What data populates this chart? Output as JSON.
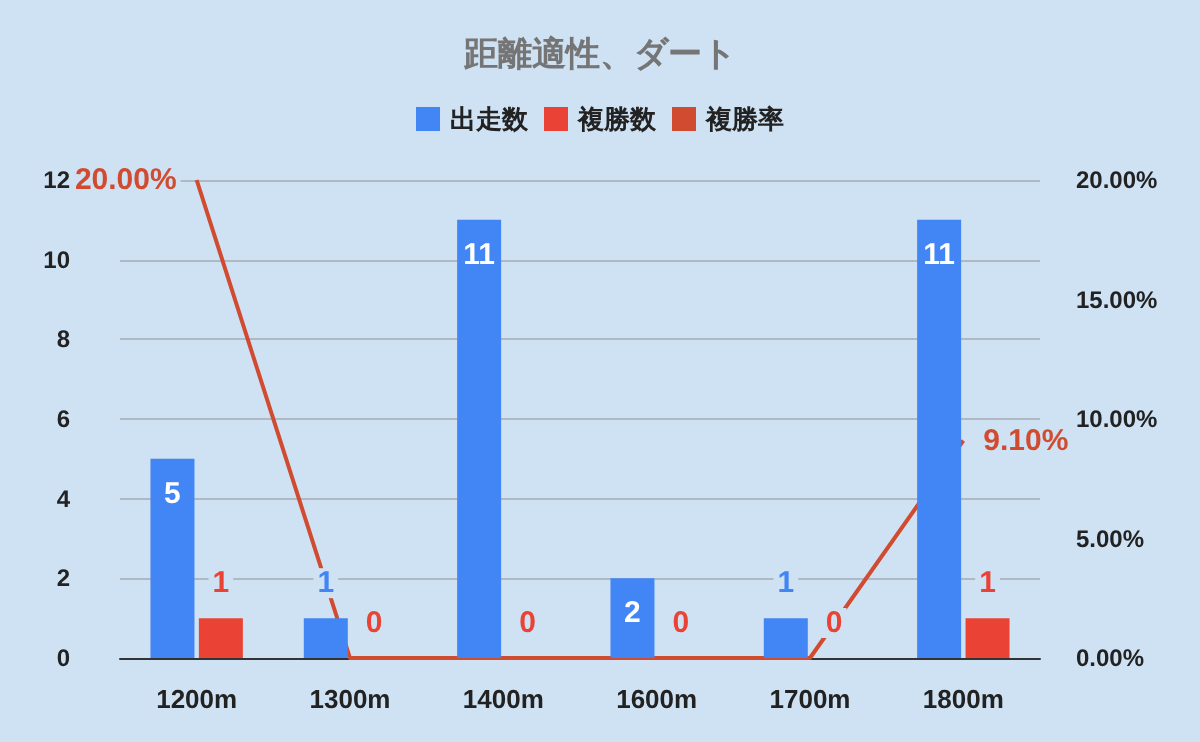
{
  "chart_data": {
    "type": "bar",
    "title": "距離適性、ダート",
    "categories": [
      "1200m",
      "1300m",
      "1400m",
      "1600m",
      "1700m",
      "1800m"
    ],
    "series": [
      {
        "name": "出走数",
        "color": "#4285f4",
        "values": [
          5,
          1,
          11,
          2,
          1,
          11
        ]
      },
      {
        "name": "複勝数",
        "color": "#ea4335",
        "values": [
          1,
          0,
          0,
          0,
          0,
          1
        ]
      },
      {
        "name": "複勝率",
        "type": "line",
        "axis": "y2",
        "color": "#d14b31",
        "values": [
          20,
          0,
          0,
          0,
          0,
          9.1
        ],
        "value_labels": [
          "20.00%",
          null,
          null,
          null,
          null,
          "9.10%"
        ]
      }
    ],
    "ylim": [
      0,
      12
    ],
    "yticks": [
      0,
      2,
      4,
      6,
      8,
      10,
      12
    ],
    "y2lim": [
      0,
      20
    ],
    "y2ticks": [
      {
        "value": 0,
        "label": "0.00%"
      },
      {
        "value": 5,
        "label": "5.00%"
      },
      {
        "value": 10,
        "label": "10.00%"
      },
      {
        "value": 15,
        "label": "15.00%"
      },
      {
        "value": 20,
        "label": "20.00%"
      }
    ],
    "grid": "y",
    "legend": "top",
    "data_labels": true,
    "marker": "none"
  }
}
